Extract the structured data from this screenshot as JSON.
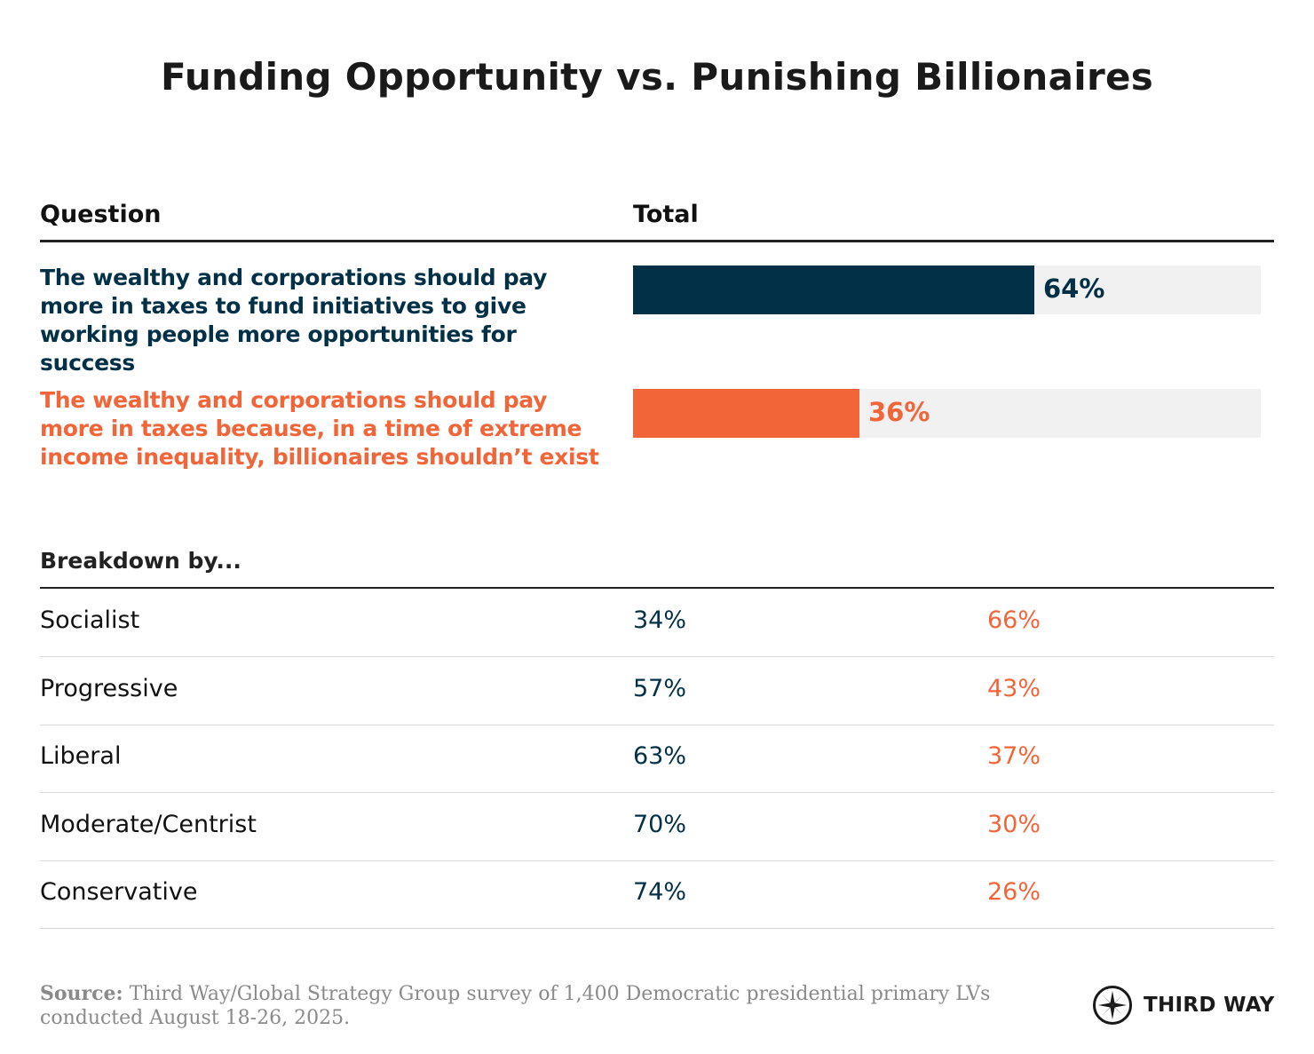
{
  "colors": {
    "series_1": "#023047",
    "series_2": "#f26539",
    "track": "#f1f1f1"
  },
  "chart_data": {
    "type": "bar",
    "title": "Funding Opportunity vs. Punishing Billionaires",
    "column_headers": [
      "Question",
      "Total"
    ],
    "categories": [
      "The wealthy and corporations should pay more in taxes to fund initiatives to give working people more opportunities for success",
      "The wealthy and corporations should pay more in taxes because, in a time of extreme income inequality, billionaires shouldn’t exist"
    ],
    "values": [
      64,
      36
    ],
    "value_labels": [
      "64%",
      "36%"
    ],
    "ylim": [
      0,
      100
    ],
    "breakdown": {
      "heading": "Breakdown by...",
      "rows": [
        {
          "segment": "Socialist",
          "opportunity": 34,
          "billionaires": 66,
          "opportunity_label": "34%",
          "billionaires_label": "66%"
        },
        {
          "segment": "Progressive",
          "opportunity": 57,
          "billionaires": 43,
          "opportunity_label": "57%",
          "billionaires_label": "43%"
        },
        {
          "segment": "Liberal",
          "opportunity": 63,
          "billionaires": 37,
          "opportunity_label": "63%",
          "billionaires_label": "37%"
        },
        {
          "segment": "Moderate/Centrist",
          "opportunity": 70,
          "billionaires": 30,
          "opportunity_label": "70%",
          "billionaires_label": "30%"
        },
        {
          "segment": "Conservative",
          "opportunity": 74,
          "billionaires": 26,
          "opportunity_label": "74%",
          "billionaires_label": "26%"
        }
      ]
    }
  },
  "footer": {
    "source_label": "Source:",
    "source_text": " Third Way/Global Strategy Group survey of 1,400 Democratic presidential primary LVs conducted August 18-26, 2025.",
    "logo_text": "THIRD WAY",
    "logo_icon": "compass-star-icon"
  }
}
